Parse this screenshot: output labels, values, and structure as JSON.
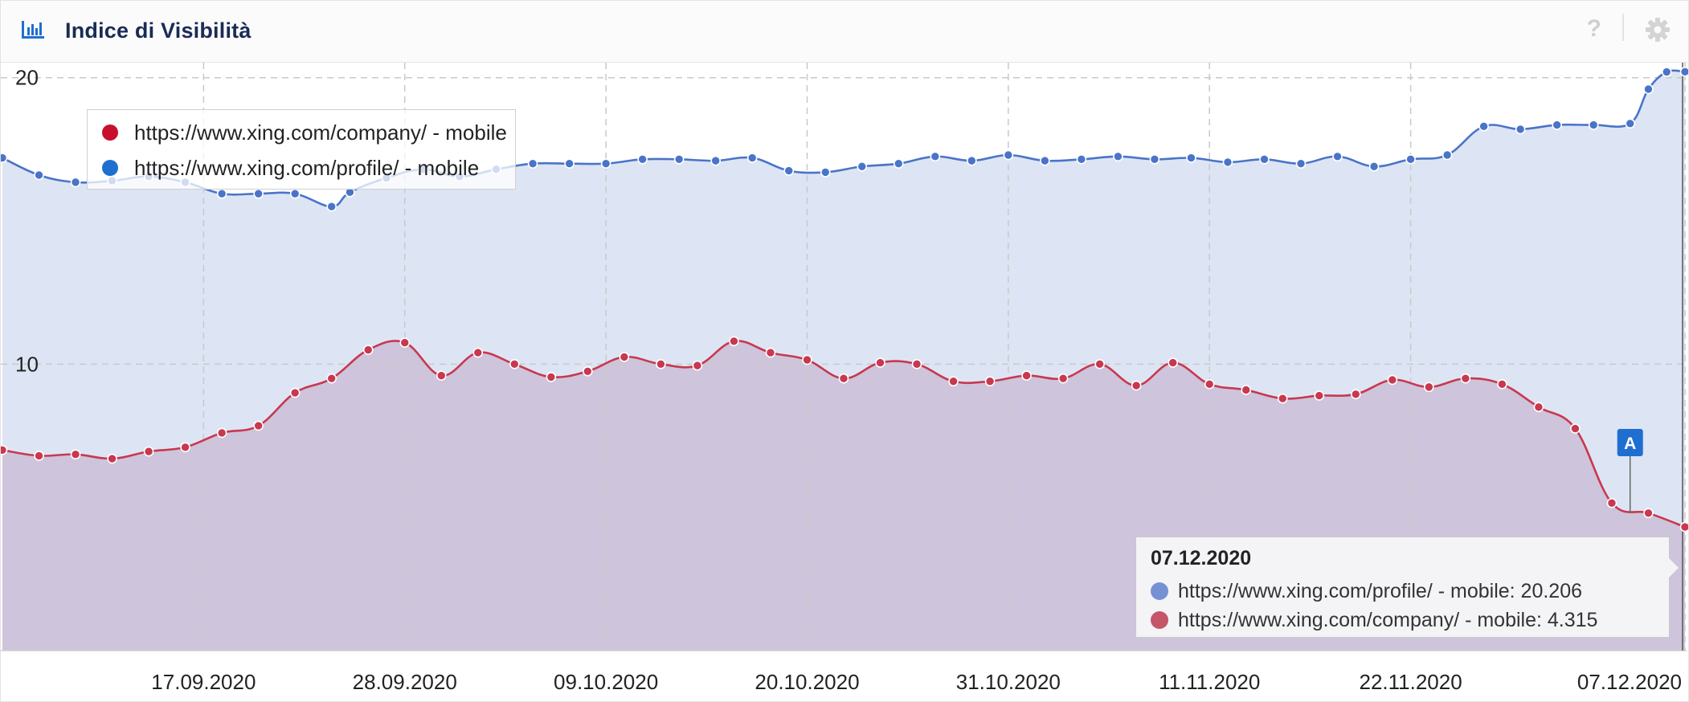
{
  "header": {
    "title": "Indice di Visibilità",
    "icon": "bar-chart-icon",
    "help_icon": "?",
    "settings_icon": "gear-icon"
  },
  "legend": [
    {
      "label": "https://www.xing.com/company/ - mobile",
      "color": "#c8102e"
    },
    {
      "label": "https://www.xing.com/profile/ - mobile",
      "color": "#1f6fd1"
    }
  ],
  "tooltip": {
    "date": "07.12.2020",
    "rows": [
      {
        "label": "https://www.xing.com/profile/ - mobile: 20.206",
        "color": "#7591d4"
      },
      {
        "label": "https://www.xing.com/company/ - mobile: 4.315",
        "color": "#c5566a"
      }
    ]
  },
  "annotation": {
    "label": "A",
    "date": "04.12.2020"
  },
  "chart_data": {
    "type": "area",
    "ylim": [
      0,
      20.3
    ],
    "y_ticks": [
      20,
      10
    ],
    "x_range": [
      "06.09.2020",
      "07.12.2020"
    ],
    "x_ticks": [
      "17.09.2020",
      "28.09.2020",
      "09.10.2020",
      "20.10.2020",
      "31.10.2020",
      "11.11.2020",
      "22.11.2020",
      "07.12.2020"
    ],
    "grid": true,
    "legend_position": "top-left",
    "series": [
      {
        "name": "https://www.xing.com/profile/ - mobile",
        "line_color": "#4a74c9",
        "fill_color": "#dde5f4",
        "points": [
          [
            "06.09.2020",
            17.2
          ],
          [
            "08.09.2020",
            16.6
          ],
          [
            "10.09.2020",
            16.35
          ],
          [
            "12.09.2020",
            16.4
          ],
          [
            "14.09.2020",
            16.55
          ],
          [
            "16.09.2020",
            16.35
          ],
          [
            "18.09.2020",
            15.95
          ],
          [
            "20.09.2020",
            15.95
          ],
          [
            "22.09.2020",
            15.95
          ],
          [
            "24.09.2020",
            15.5
          ],
          [
            "25.09.2020",
            16.0
          ],
          [
            "27.09.2020",
            16.5
          ],
          [
            "29.09.2020",
            16.8
          ],
          [
            "01.10.2020",
            16.55
          ],
          [
            "03.10.2020",
            16.8
          ],
          [
            "05.10.2020",
            17.0
          ],
          [
            "07.10.2020",
            17.0
          ],
          [
            "09.10.2020",
            17.0
          ],
          [
            "11.10.2020",
            17.15
          ],
          [
            "13.10.2020",
            17.15
          ],
          [
            "15.10.2020",
            17.1
          ],
          [
            "17.10.2020",
            17.2
          ],
          [
            "19.10.2020",
            16.75
          ],
          [
            "21.10.2020",
            16.7
          ],
          [
            "23.10.2020",
            16.9
          ],
          [
            "25.10.2020",
            17.0
          ],
          [
            "27.10.2020",
            17.25
          ],
          [
            "29.10.2020",
            17.1
          ],
          [
            "31.10.2020",
            17.3
          ],
          [
            "02.11.2020",
            17.1
          ],
          [
            "04.11.2020",
            17.15
          ],
          [
            "06.11.2020",
            17.25
          ],
          [
            "08.11.2020",
            17.15
          ],
          [
            "10.11.2020",
            17.2
          ],
          [
            "12.11.2020",
            17.05
          ],
          [
            "14.11.2020",
            17.15
          ],
          [
            "16.11.2020",
            17.0
          ],
          [
            "18.11.2020",
            17.25
          ],
          [
            "20.11.2020",
            16.9
          ],
          [
            "22.11.2020",
            17.15
          ],
          [
            "24.11.2020",
            17.3
          ],
          [
            "26.11.2020",
            18.3
          ],
          [
            "28.11.2020",
            18.2
          ],
          [
            "30.11.2020",
            18.35
          ],
          [
            "02.12.2020",
            18.35
          ],
          [
            "04.12.2020",
            18.4
          ],
          [
            "05.12.2020",
            19.6
          ],
          [
            "06.12.2020",
            20.2
          ],
          [
            "07.12.2020",
            20.206
          ]
        ]
      },
      {
        "name": "https://www.xing.com/company/ - mobile",
        "line_color": "#c8384f",
        "fill_color": "#cec4db",
        "points": [
          [
            "06.09.2020",
            7.0
          ],
          [
            "08.09.2020",
            6.8
          ],
          [
            "10.09.2020",
            6.85
          ],
          [
            "12.09.2020",
            6.7
          ],
          [
            "14.09.2020",
            6.95
          ],
          [
            "16.09.2020",
            7.1
          ],
          [
            "18.09.2020",
            7.6
          ],
          [
            "20.09.2020",
            7.85
          ],
          [
            "22.09.2020",
            9.0
          ],
          [
            "24.09.2020",
            9.5
          ],
          [
            "26.09.2020",
            10.5
          ],
          [
            "28.09.2020",
            10.75
          ],
          [
            "30.09.2020",
            9.6
          ],
          [
            "02.10.2020",
            10.4
          ],
          [
            "04.10.2020",
            10.0
          ],
          [
            "06.10.2020",
            9.55
          ],
          [
            "08.10.2020",
            9.75
          ],
          [
            "10.10.2020",
            10.25
          ],
          [
            "12.10.2020",
            10.0
          ],
          [
            "14.10.2020",
            9.95
          ],
          [
            "16.10.2020",
            10.8
          ],
          [
            "18.10.2020",
            10.4
          ],
          [
            "20.10.2020",
            10.15
          ],
          [
            "22.10.2020",
            9.5
          ],
          [
            "24.10.2020",
            10.05
          ],
          [
            "26.10.2020",
            10.0
          ],
          [
            "28.10.2020",
            9.4
          ],
          [
            "30.10.2020",
            9.4
          ],
          [
            "01.11.2020",
            9.6
          ],
          [
            "03.11.2020",
            9.5
          ],
          [
            "05.11.2020",
            10.0
          ],
          [
            "07.11.2020",
            9.25
          ],
          [
            "09.11.2020",
            10.05
          ],
          [
            "11.11.2020",
            9.3
          ],
          [
            "13.11.2020",
            9.1
          ],
          [
            "15.11.2020",
            8.8
          ],
          [
            "17.11.2020",
            8.9
          ],
          [
            "19.11.2020",
            8.95
          ],
          [
            "21.11.2020",
            9.45
          ],
          [
            "23.11.2020",
            9.2
          ],
          [
            "25.11.2020",
            9.5
          ],
          [
            "27.11.2020",
            9.3
          ],
          [
            "29.11.2020",
            8.5
          ],
          [
            "01.12.2020",
            7.75
          ],
          [
            "03.12.2020",
            5.15
          ],
          [
            "05.12.2020",
            4.8
          ],
          [
            "07.12.2020",
            4.315
          ]
        ]
      }
    ]
  }
}
